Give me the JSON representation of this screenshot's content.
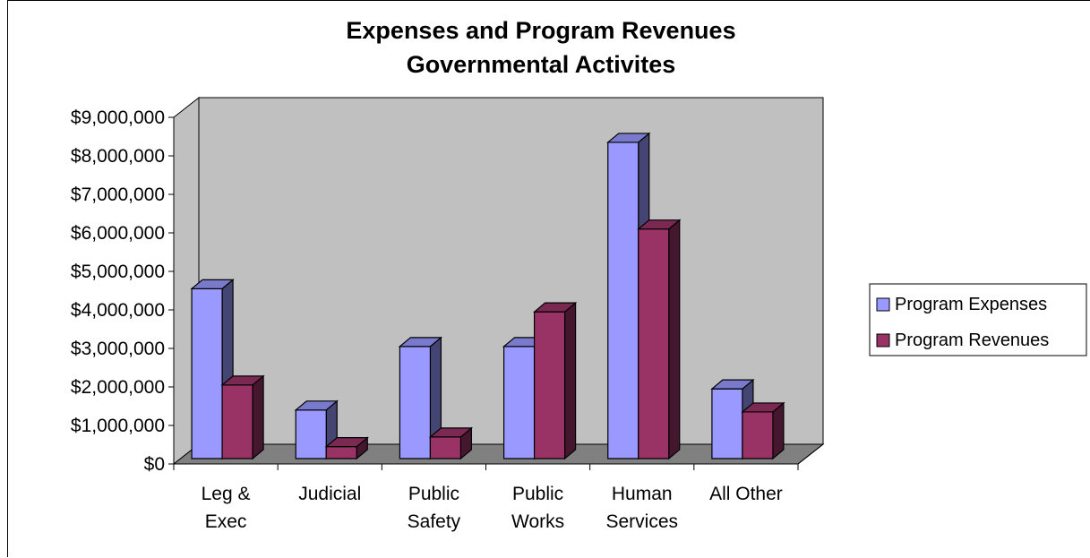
{
  "chart_data": {
    "type": "bar",
    "title": [
      "Expenses and Program Revenues",
      "Governmental Activites"
    ],
    "xlabel": "",
    "ylabel": "",
    "categories": [
      [
        "Leg &",
        "Exec"
      ],
      [
        "Judicial"
      ],
      [
        "Public",
        "Safety"
      ],
      [
        "Public",
        "Works"
      ],
      [
        "Human",
        "Services"
      ],
      [
        "All Other"
      ]
    ],
    "series": [
      {
        "name": "Program Expenses",
        "color": "#9999ff",
        "values": [
          4550000,
          1400000,
          3050000,
          3050000,
          8350000,
          1950000
        ]
      },
      {
        "name": "Program Revenues",
        "color": "#993366",
        "values": [
          2050000,
          450000,
          700000,
          3950000,
          6100000,
          1350000
        ]
      }
    ],
    "ylim": [
      0,
      9000000
    ],
    "yticks": [
      0,
      1000000,
      2000000,
      3000000,
      4000000,
      5000000,
      6000000,
      7000000,
      8000000,
      9000000
    ],
    "ytick_labels": [
      "$0",
      "$1,000,000",
      "$2,000,000",
      "$3,000,000",
      "$4,000,000",
      "$5,000,000",
      "$6,000,000",
      "$7,000,000",
      "$8,000,000",
      "$9,000,000"
    ],
    "grid": false,
    "legend_position": "right",
    "style": "3d-clustered-column",
    "wall_color": "#c0c0c0",
    "floor_color": "#808080"
  }
}
